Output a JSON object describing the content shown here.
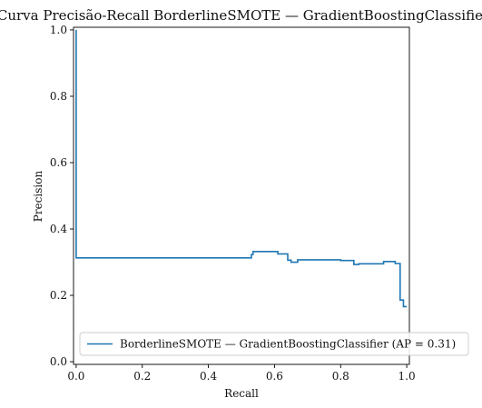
{
  "chart_data": {
    "type": "line",
    "title": "Curva Precisão-Recall BorderlineSMOTE — GradientBoostingClassifier",
    "xlabel": "Recall",
    "ylabel": "Precision",
    "xlim": [
      -0.008,
      1.008
    ],
    "ylim": [
      -0.008,
      1.008
    ],
    "xticks": [
      "0.0",
      "0.2",
      "0.4",
      "0.6",
      "0.8",
      "1.0"
    ],
    "yticks": [
      "0.0",
      "0.2",
      "0.4",
      "0.6",
      "0.8",
      "1.0"
    ],
    "grid": false,
    "drawstyle": "steps-post",
    "legend_position": "lower-right",
    "series": [
      {
        "name": "BorderlineSMOTE — GradientBoostingClassifier (AP = 0.31)",
        "color": "#1f77b4",
        "points": [
          [
            0.0,
            1.0
          ],
          [
            0.0,
            0.313
          ],
          [
            0.52,
            0.313
          ],
          [
            0.53,
            0.323
          ],
          [
            0.535,
            0.332
          ],
          [
            0.61,
            0.325
          ],
          [
            0.64,
            0.306
          ],
          [
            0.65,
            0.3
          ],
          [
            0.67,
            0.307
          ],
          [
            0.8,
            0.305
          ],
          [
            0.84,
            0.293
          ],
          [
            0.855,
            0.295
          ],
          [
            0.93,
            0.302
          ],
          [
            0.965,
            0.296
          ],
          [
            0.98,
            0.186
          ],
          [
            0.99,
            0.166
          ],
          [
            1.0,
            0.166
          ]
        ]
      }
    ]
  }
}
